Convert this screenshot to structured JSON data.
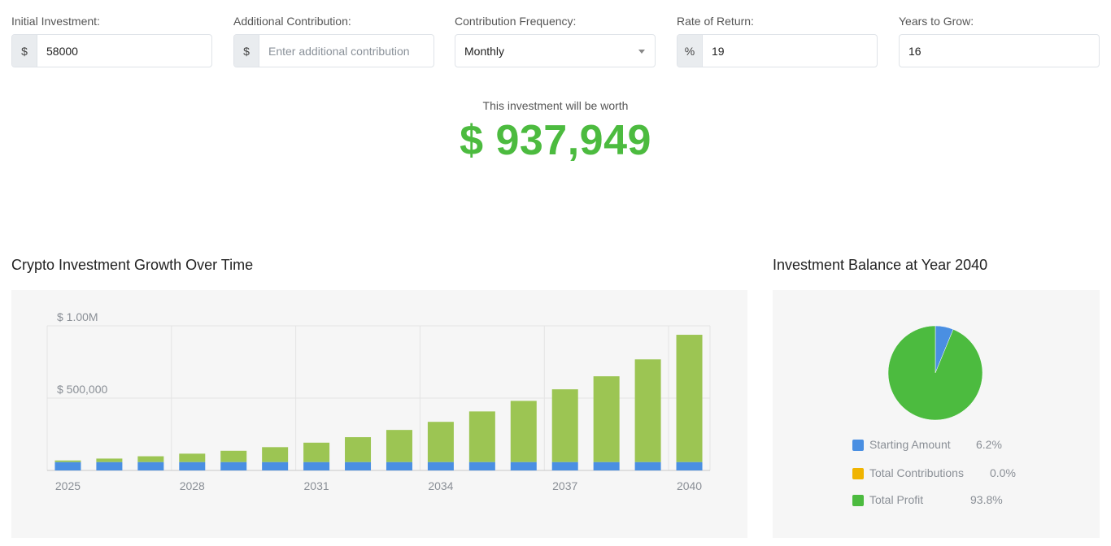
{
  "form": {
    "initial_investment": {
      "label": "Initial Investment:",
      "prefix": "$",
      "value": "58000"
    },
    "additional_contribution": {
      "label": "Additional Contribution:",
      "prefix": "$",
      "placeholder": "Enter additional contribution"
    },
    "contribution_frequency": {
      "label": "Contribution Frequency:",
      "value": "Monthly"
    },
    "rate_of_return": {
      "label": "Rate of Return:",
      "prefix": "%",
      "value": "19"
    },
    "years_to_grow": {
      "label": "Years to Grow:",
      "value": "16"
    }
  },
  "result": {
    "label": "This investment will be worth",
    "value": "$ 937,949",
    "color": "#4cbb3f"
  },
  "growth_chart": {
    "title": "Crypto Investment Growth Over Time"
  },
  "balance_chart": {
    "title": "Investment Balance at Year 2040"
  },
  "legend": [
    {
      "label": "Starting Amount",
      "pct": "6.2%",
      "color": "#4a8fe2"
    },
    {
      "label": "Total Contributions",
      "pct": "0.0%",
      "color": "#f0b400"
    },
    {
      "label": "Total Profit",
      "pct": "93.8%",
      "color": "#4cbb3f"
    }
  ],
  "chart_data": [
    {
      "type": "bar",
      "stacked": true,
      "title": "Crypto Investment Growth Over Time",
      "categories": [
        "2025",
        "2026",
        "2027",
        "2028",
        "2029",
        "2030",
        "2031",
        "2032",
        "2033",
        "2034",
        "2035",
        "2036",
        "2037",
        "2038",
        "2039",
        "2040"
      ],
      "x_tick_labels": [
        "2025",
        "2028",
        "2031",
        "2034",
        "2037",
        "2040"
      ],
      "y_tick_labels": [
        "$ 500,000",
        "$ 1.00M"
      ],
      "y_ticks": [
        0,
        500000,
        1000000
      ],
      "ylim": [
        0,
        1000000
      ],
      "grid": true,
      "series": [
        {
          "name": "Starting Amount",
          "color": "#4a8fe2",
          "values": [
            58000,
            58000,
            58000,
            58000,
            58000,
            58000,
            58000,
            58000,
            58000,
            58000,
            58000,
            58000,
            58000,
            58000,
            58000,
            58000
          ]
        },
        {
          "name": "Total Profit",
          "color": "#9cc553",
          "values": [
            11000,
            24000,
            40000,
            58000,
            78000,
            103000,
            134000,
            172000,
            222000,
            278000,
            350000,
            423000,
            503000,
            593000,
            710000,
            880000
          ]
        }
      ]
    },
    {
      "type": "pie",
      "title": "Investment Balance at Year 2040",
      "labels": [
        "Starting Amount",
        "Total Contributions",
        "Total Profit"
      ],
      "values": [
        6.2,
        0.0,
        93.8
      ],
      "colors": [
        "#4a8fe2",
        "#f0b400",
        "#4cbb3f"
      ]
    }
  ]
}
